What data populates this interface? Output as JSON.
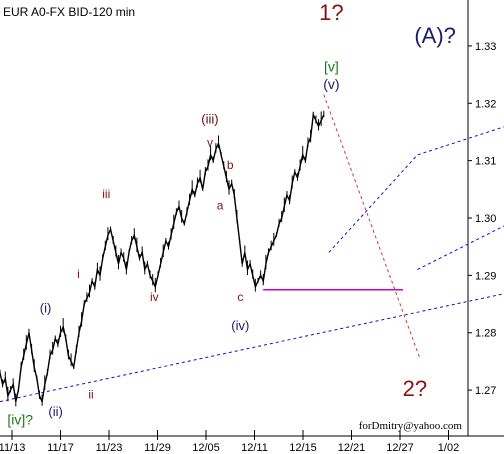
{
  "chart_data": {
    "type": "line",
    "title": "EUR A0-FX BID-120 min",
    "watermark": "forDmitry@yahoo.com",
    "xlabel": "",
    "ylabel": "",
    "ylim": [
      1.262,
      1.338
    ],
    "x_ticks": [
      "11/13",
      "11/17",
      "11/23",
      "11/29",
      "12/05",
      "12/11",
      "12/15",
      "12/21",
      "12/27",
      "1/02"
    ],
    "y_ticks": [
      1.27,
      1.28,
      1.29,
      1.3,
      1.31,
      1.32,
      1.33
    ],
    "y_ticks_text": [
      "1.27",
      "1.28",
      "1.29",
      "1.30",
      "1.31",
      "1.32",
      "1.33"
    ],
    "grid": false,
    "series": [
      {
        "name": "",
        "values": [
          1.273,
          1.271,
          1.272,
          1.269,
          1.27,
          1.271,
          1.268,
          1.27,
          1.274,
          1.276,
          1.278,
          1.28,
          1.277,
          1.274,
          1.272,
          1.269,
          1.268,
          1.271,
          1.273,
          1.276,
          1.277,
          1.279,
          1.278,
          1.28,
          1.281,
          1.279,
          1.276,
          1.275,
          1.274,
          1.277,
          1.28,
          1.282,
          1.285,
          1.286,
          1.287,
          1.289,
          1.288,
          1.291,
          1.29,
          1.293,
          1.295,
          1.297,
          1.298,
          1.296,
          1.294,
          1.292,
          1.294,
          1.293,
          1.291,
          1.294,
          1.296,
          1.297,
          1.295,
          1.293,
          1.294,
          1.291,
          1.292,
          1.29,
          1.289,
          1.288,
          1.29,
          1.292,
          1.294,
          1.296,
          1.295,
          1.297,
          1.299,
          1.301,
          1.302,
          1.3,
          1.299,
          1.301,
          1.303,
          1.305,
          1.304,
          1.306,
          1.307,
          1.305,
          1.308,
          1.309,
          1.311,
          1.31,
          1.312,
          1.313,
          1.311,
          1.309,
          1.307,
          1.305,
          1.306,
          1.304,
          1.3,
          1.296,
          1.292,
          1.294,
          1.291,
          1.292,
          1.29,
          1.288,
          1.289,
          1.29,
          1.289,
          1.292,
          1.294,
          1.295,
          1.296,
          1.297,
          1.299,
          1.3,
          1.302,
          1.304,
          1.303,
          1.306,
          1.308,
          1.307,
          1.309,
          1.311,
          1.31,
          1.313,
          1.314,
          1.318,
          1.317,
          1.316,
          1.317,
          1.318
        ]
      }
    ],
    "channels": {
      "color": "#1010cc",
      "upper": [
        [
          130,
          1.294
        ],
        [
          165,
          1.311
        ],
        [
          228,
          1.32
        ]
      ],
      "middle": [
        [
          165,
          1.291
        ],
        [
          228,
          1.305
        ]
      ],
      "lower": [
        [
          0,
          1.268
        ],
        [
          212,
          1.288
        ],
        [
          223,
          1.291
        ]
      ]
    },
    "hline": {
      "value": 1.2875,
      "color": "#cc00cc"
    },
    "projection": {
      "color": "#dd3333",
      "points": [
        [
          128,
          1.3215
        ],
        [
          166,
          1.2755
        ]
      ]
    },
    "wave_labels": [
      {
        "text": "1?",
        "x": 131,
        "y": 1.3345,
        "color": "#8b1010",
        "size": 22,
        "family": "sans"
      },
      {
        "text": "(A)?",
        "x": 172,
        "y": 1.3305,
        "color": "#1a1a6e",
        "size": 22,
        "family": "sans"
      },
      {
        "text": "[v]",
        "x": 131,
        "y": 1.3255,
        "color": "#1a7a1a",
        "size": 14,
        "family": "sans"
      },
      {
        "text": "(v)",
        "x": 131,
        "y": 1.3225,
        "color": "#1a1a6e",
        "size": 14,
        "family": "sans"
      },
      {
        "text": "(iii)",
        "x": 83,
        "y": 1.3165,
        "color": "#5a1010",
        "size": 13,
        "family": "sans"
      },
      {
        "text": "v",
        "x": 83,
        "y": 1.3125,
        "color": "#8b1010",
        "size": 12,
        "family": "sans"
      },
      {
        "text": "b",
        "x": 91,
        "y": 1.3085,
        "color": "#8b1010",
        "size": 12,
        "family": "sans"
      },
      {
        "text": "iii",
        "x": 42,
        "y": 1.3035,
        "color": "#8b1010",
        "size": 12,
        "family": "sans"
      },
      {
        "text": "a",
        "x": 87,
        "y": 1.3015,
        "color": "#8b1010",
        "size": 12,
        "family": "sans"
      },
      {
        "text": "i",
        "x": 31,
        "y": 1.2895,
        "color": "#8b1010",
        "size": 12,
        "family": "sans"
      },
      {
        "text": "iv",
        "x": 61,
        "y": 1.2855,
        "color": "#8b1010",
        "size": 12,
        "family": "sans"
      },
      {
        "text": "c",
        "x": 95,
        "y": 1.2855,
        "color": "#8b1010",
        "size": 12,
        "family": "sans"
      },
      {
        "text": "(i)",
        "x": 18,
        "y": 1.2835,
        "color": "#1a1a6e",
        "size": 13,
        "family": "sans"
      },
      {
        "text": "(iv)",
        "x": 95,
        "y": 1.2805,
        "color": "#1a1a6e",
        "size": 13,
        "family": "sans"
      },
      {
        "text": "ii",
        "x": 36,
        "y": 1.2685,
        "color": "#8b1010",
        "size": 12,
        "family": "sans"
      },
      {
        "text": "(ii)",
        "x": 22,
        "y": 1.2655,
        "color": "#1a1a6e",
        "size": 13,
        "family": "sans"
      },
      {
        "text": "[iv]?",
        "x": 8,
        "y": 1.264,
        "color": "#1a7a1a",
        "size": 14,
        "family": "sans"
      },
      {
        "text": "2?",
        "x": 164,
        "y": 1.269,
        "color": "#8b1010",
        "size": 22,
        "family": "sans"
      }
    ]
  }
}
